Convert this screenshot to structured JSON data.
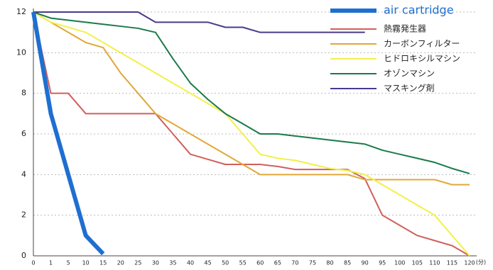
{
  "chart_data": {
    "type": "line",
    "categories": [
      "0",
      "1",
      "5",
      "10",
      "15",
      "20",
      "25",
      "30",
      "35",
      "40",
      "45",
      "50",
      "55",
      "60",
      "65",
      "70",
      "75",
      "80",
      "85",
      "90",
      "95",
      "100",
      "105",
      "110",
      "115",
      "120"
    ],
    "x_unit": "(分)",
    "ylim": [
      0,
      12
    ],
    "yticks": [
      0,
      2,
      4,
      6,
      8,
      10,
      12
    ],
    "grid": true,
    "series": [
      {
        "name": "air cartridge",
        "color": "#1f6fd0",
        "values": [
          12,
          7,
          4,
          1,
          0.1,
          null,
          null,
          null,
          null,
          null,
          null,
          null,
          null,
          null,
          null,
          null,
          null,
          null,
          null,
          null,
          null,
          null,
          null,
          null,
          null,
          null
        ]
      },
      {
        "name": "熱霧発生器",
        "color": "#d0605a",
        "values": [
          12,
          8,
          8,
          7,
          7,
          7,
          7,
          7,
          6,
          5,
          4.75,
          4.5,
          4.5,
          4.5,
          4.4,
          4.25,
          4.25,
          4.25,
          4.25,
          3.8,
          2,
          1.5,
          1,
          0.75,
          0.5,
          0
        ]
      },
      {
        "name": "カーボンフィルター",
        "color": "#e0a838",
        "values": [
          12,
          11.5,
          11,
          10.5,
          10.25,
          9,
          8,
          7,
          6.5,
          6,
          5.5,
          5,
          4.5,
          4,
          4,
          4,
          4,
          4,
          4,
          3.75,
          3.75,
          3.75,
          3.75,
          3.75,
          3.5,
          3.5
        ]
      },
      {
        "name": "ヒドロキシルマシン",
        "color": "#f2f04a",
        "values": [
          12,
          11.5,
          11.25,
          11,
          10.5,
          10,
          9.5,
          9,
          8.5,
          8,
          7.5,
          7,
          6,
          5,
          4.8,
          4.7,
          4.5,
          4.3,
          4.2,
          4,
          3.5,
          3,
          2.5,
          2,
          1,
          0
        ]
      },
      {
        "name": "オゾンマシン",
        "color": "#1a7a4a",
        "values": [
          12,
          11.7,
          11.6,
          11.5,
          11.4,
          11.3,
          11.2,
          11,
          9.7,
          8.5,
          7.7,
          7,
          6.5,
          6,
          6,
          5.9,
          5.8,
          5.7,
          5.6,
          5.5,
          5.2,
          5,
          4.8,
          4.6,
          4.3,
          4.05
        ]
      },
      {
        "name": "マスキング剤",
        "color": "#4a3a8a",
        "values": [
          12,
          12,
          12,
          12,
          12,
          12,
          12,
          11.5,
          11.5,
          11.5,
          11.5,
          11.25,
          11.25,
          11,
          11,
          11,
          11,
          11,
          11,
          11,
          null,
          null,
          null,
          null,
          null,
          null
        ]
      }
    ]
  }
}
